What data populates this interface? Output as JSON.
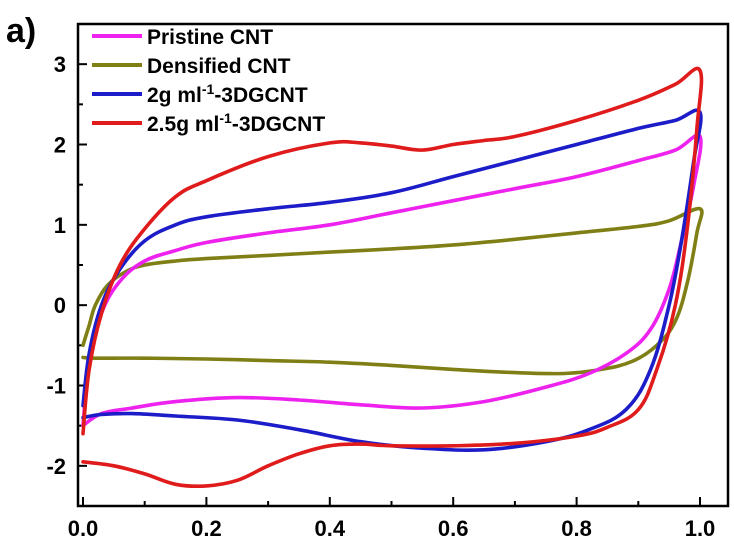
{
  "chart_data": {
    "type": "line",
    "panel_label": "a)",
    "title": "",
    "xlabel": "",
    "ylabel": "",
    "xlim": [
      0.0,
      1.0
    ],
    "ylim": [
      -2.5,
      3.5
    ],
    "x_ticks": [
      "0.0",
      "0.2",
      "0.4",
      "0.6",
      "0.8",
      "1.0"
    ],
    "y_ticks": [
      "-2",
      "-1",
      "0",
      "1",
      "2",
      "3"
    ],
    "grid": false,
    "legend_position": "top-left",
    "series": [
      {
        "name": "Pristine CNT",
        "color": "#ee22ee",
        "points": [
          [
            0.0,
            -1.5
          ],
          [
            0.01,
            -0.7
          ],
          [
            0.03,
            -0.1
          ],
          [
            0.06,
            0.3
          ],
          [
            0.1,
            0.55
          ],
          [
            0.15,
            0.68
          ],
          [
            0.2,
            0.78
          ],
          [
            0.3,
            0.9
          ],
          [
            0.4,
            1.0
          ],
          [
            0.5,
            1.15
          ],
          [
            0.6,
            1.3
          ],
          [
            0.7,
            1.45
          ],
          [
            0.8,
            1.6
          ],
          [
            0.9,
            1.8
          ],
          [
            0.96,
            1.93
          ],
          [
            1.0,
            2.1
          ],
          [
            0.99,
            1.5
          ],
          [
            0.97,
            0.8
          ],
          [
            0.95,
            0.2
          ],
          [
            0.92,
            -0.3
          ],
          [
            0.88,
            -0.6
          ],
          [
            0.82,
            -0.85
          ],
          [
            0.75,
            -1.02
          ],
          [
            0.65,
            -1.2
          ],
          [
            0.55,
            -1.28
          ],
          [
            0.45,
            -1.24
          ],
          [
            0.35,
            -1.18
          ],
          [
            0.25,
            -1.15
          ],
          [
            0.15,
            -1.2
          ],
          [
            0.08,
            -1.28
          ],
          [
            0.03,
            -1.35
          ],
          [
            0.0,
            -1.5
          ]
        ]
      },
      {
        "name": "Densified CNT",
        "color": "#7f7f16",
        "points": [
          [
            0.0,
            -0.5
          ],
          [
            0.01,
            -0.25
          ],
          [
            0.02,
            0.0
          ],
          [
            0.04,
            0.25
          ],
          [
            0.07,
            0.42
          ],
          [
            0.1,
            0.5
          ],
          [
            0.15,
            0.55
          ],
          [
            0.2,
            0.58
          ],
          [
            0.3,
            0.62
          ],
          [
            0.4,
            0.66
          ],
          [
            0.5,
            0.7
          ],
          [
            0.6,
            0.75
          ],
          [
            0.7,
            0.82
          ],
          [
            0.8,
            0.9
          ],
          [
            0.9,
            0.98
          ],
          [
            0.95,
            1.05
          ],
          [
            1.0,
            1.2
          ],
          [
            0.995,
            0.9
          ],
          [
            0.98,
            0.3
          ],
          [
            0.96,
            -0.2
          ],
          [
            0.93,
            -0.5
          ],
          [
            0.89,
            -0.7
          ],
          [
            0.84,
            -0.8
          ],
          [
            0.78,
            -0.85
          ],
          [
            0.7,
            -0.84
          ],
          [
            0.6,
            -0.8
          ],
          [
            0.5,
            -0.75
          ],
          [
            0.4,
            -0.71
          ],
          [
            0.3,
            -0.69
          ],
          [
            0.2,
            -0.67
          ],
          [
            0.1,
            -0.66
          ],
          [
            0.02,
            -0.66
          ],
          [
            0.0,
            -0.65
          ]
        ]
      },
      {
        "name": "2g ml-1-3DGCNT",
        "color": "#1c1cc8",
        "points": [
          [
            0.0,
            -1.25
          ],
          [
            0.01,
            -0.6
          ],
          [
            0.03,
            0.0
          ],
          [
            0.06,
            0.45
          ],
          [
            0.1,
            0.8
          ],
          [
            0.15,
            1.0
          ],
          [
            0.2,
            1.1
          ],
          [
            0.3,
            1.2
          ],
          [
            0.4,
            1.28
          ],
          [
            0.5,
            1.4
          ],
          [
            0.6,
            1.6
          ],
          [
            0.7,
            1.8
          ],
          [
            0.8,
            2.0
          ],
          [
            0.9,
            2.2
          ],
          [
            0.96,
            2.3
          ],
          [
            1.0,
            2.4
          ],
          [
            0.99,
            1.8
          ],
          [
            0.97,
            0.8
          ],
          [
            0.95,
            0.0
          ],
          [
            0.92,
            -0.8
          ],
          [
            0.88,
            -1.3
          ],
          [
            0.82,
            -1.55
          ],
          [
            0.75,
            -1.7
          ],
          [
            0.65,
            -1.8
          ],
          [
            0.55,
            -1.78
          ],
          [
            0.45,
            -1.7
          ],
          [
            0.35,
            -1.55
          ],
          [
            0.25,
            -1.43
          ],
          [
            0.15,
            -1.38
          ],
          [
            0.08,
            -1.35
          ],
          [
            0.03,
            -1.36
          ],
          [
            0.0,
            -1.4
          ]
        ]
      },
      {
        "name": "2.5g ml-1-3DGCNT",
        "color": "#e01b1b",
        "points": [
          [
            0.0,
            -1.6
          ],
          [
            0.01,
            -0.8
          ],
          [
            0.03,
            -0.1
          ],
          [
            0.06,
            0.5
          ],
          [
            0.1,
            0.95
          ],
          [
            0.15,
            1.35
          ],
          [
            0.2,
            1.55
          ],
          [
            0.3,
            1.85
          ],
          [
            0.4,
            2.02
          ],
          [
            0.45,
            2.02
          ],
          [
            0.5,
            1.98
          ],
          [
            0.55,
            1.93
          ],
          [
            0.6,
            2.0
          ],
          [
            0.65,
            2.05
          ],
          [
            0.7,
            2.1
          ],
          [
            0.8,
            2.3
          ],
          [
            0.9,
            2.55
          ],
          [
            0.96,
            2.75
          ],
          [
            1.0,
            2.92
          ],
          [
            0.995,
            2.2
          ],
          [
            0.98,
            1.0
          ],
          [
            0.96,
            0.0
          ],
          [
            0.93,
            -0.8
          ],
          [
            0.9,
            -1.3
          ],
          [
            0.85,
            -1.52
          ],
          [
            0.8,
            -1.63
          ],
          [
            0.7,
            -1.72
          ],
          [
            0.6,
            -1.75
          ],
          [
            0.5,
            -1.75
          ],
          [
            0.45,
            -1.73
          ],
          [
            0.4,
            -1.75
          ],
          [
            0.35,
            -1.85
          ],
          [
            0.3,
            -2.0
          ],
          [
            0.25,
            -2.18
          ],
          [
            0.2,
            -2.25
          ],
          [
            0.15,
            -2.23
          ],
          [
            0.1,
            -2.1
          ],
          [
            0.05,
            -2.0
          ],
          [
            0.0,
            -1.95
          ]
        ]
      }
    ],
    "legend": {
      "entries": [
        {
          "base": "Pristine CNT",
          "sup": "",
          "tail": ""
        },
        {
          "base": "Densified CNT",
          "sup": "",
          "tail": ""
        },
        {
          "base": "2g ml",
          "sup": "-1",
          "tail": "-3DGCNT"
        },
        {
          "base": "2.5g ml",
          "sup": "-1",
          "tail": "-3DGCNT"
        }
      ]
    }
  }
}
